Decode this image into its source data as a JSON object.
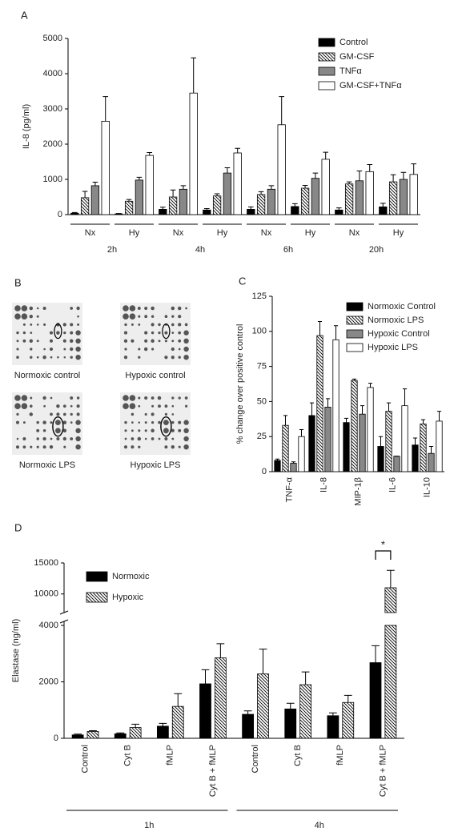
{
  "chart_data": [
    {
      "type": "bar",
      "panel": "A",
      "ylabel": "IL-8 (pg/ml)",
      "categories": [
        "Nx",
        "Hy",
        "Nx",
        "Hy",
        "Nx",
        "Hy",
        "Nx",
        "Hy"
      ],
      "groups": [
        "2h",
        "4h",
        "6h",
        "20h"
      ],
      "series": [
        {
          "name": "Control",
          "color": "#000000",
          "hatch": false,
          "values": [
            40,
            20,
            150,
            130,
            150,
            230,
            130,
            220
          ],
          "errors": [
            20,
            10,
            60,
            40,
            70,
            80,
            60,
            100
          ]
        },
        {
          "name": "GM-CSF",
          "color": "#ffffff",
          "hatch": true,
          "values": [
            480,
            380,
            500,
            530,
            570,
            750,
            870,
            930
          ],
          "errors": [
            180,
            50,
            200,
            60,
            80,
            80,
            60,
            200
          ]
        },
        {
          "name": "TNFα",
          "color": "#888888",
          "hatch": false,
          "values": [
            820,
            980,
            720,
            1180,
            720,
            1030,
            960,
            1000
          ],
          "errors": [
            100,
            80,
            100,
            150,
            100,
            150,
            280,
            200
          ]
        },
        {
          "name": "GM-CSF+TNFα",
          "color": "#ffffff",
          "hatch": false,
          "values": [
            2650,
            1680,
            3450,
            1750,
            2550,
            1570,
            1220,
            1140
          ],
          "errors": [
            700,
            80,
            1000,
            130,
            800,
            200,
            200,
            300
          ]
        }
      ],
      "ylim": [
        0,
        5000
      ],
      "yticks": [
        0,
        1000,
        2000,
        3000,
        4000,
        5000
      ]
    },
    {
      "type": "bar",
      "panel": "C",
      "ylabel": "% change over positive control",
      "categories": [
        "TNF-α",
        "IL-8",
        "MIP-1β",
        "IL-6",
        "IL-10"
      ],
      "series": [
        {
          "name": "Normoxic Control",
          "color": "#000000",
          "hatch": false,
          "values": [
            8,
            40,
            35,
            18,
            19
          ],
          "errors": [
            1,
            9,
            3,
            7,
            5
          ]
        },
        {
          "name": "Normoxic LPS",
          "color": "#ffffff",
          "hatch": true,
          "values": [
            33,
            97,
            65,
            43,
            34
          ],
          "errors": [
            7,
            10,
            1,
            6,
            3
          ]
        },
        {
          "name": "Hypoxic Control",
          "color": "#888888",
          "hatch": false,
          "values": [
            6,
            46,
            41,
            11,
            13
          ],
          "errors": [
            1,
            6,
            6,
            0,
            5
          ]
        },
        {
          "name": "Hypoxic LPS",
          "color": "#ffffff",
          "hatch": false,
          "values": [
            25,
            94,
            60,
            47,
            36
          ],
          "errors": [
            5,
            10,
            3,
            12,
            7
          ]
        }
      ],
      "ylim": [
        0,
        125
      ],
      "yticks": [
        0,
        25,
        50,
        75,
        100,
        125
      ]
    },
    {
      "type": "bar",
      "panel": "D",
      "ylabel": "Elastase (ng/ml)",
      "categories": [
        "Control",
        "Cyt B",
        "fMLP",
        "Cyt B + fMLP",
        "Control",
        "Cyt B",
        "fMLP",
        "Cyt B + fMLP"
      ],
      "groups": [
        "1h",
        "4h"
      ],
      "series": [
        {
          "name": "Normoxic",
          "color": "#000000",
          "hatch": false,
          "values": [
            120,
            160,
            430,
            1930,
            850,
            1040,
            800,
            2680
          ],
          "errors": [
            30,
            30,
            100,
            500,
            120,
            200,
            100,
            600
          ]
        },
        {
          "name": "Hypoxic",
          "color": "#ffffff",
          "hatch": true,
          "values": [
            240,
            380,
            1130,
            2850,
            2280,
            1900,
            1270,
            11000
          ],
          "errors": [
            30,
            120,
            450,
            500,
            880,
            450,
            250,
            2800
          ]
        }
      ],
      "ylim": [
        0,
        4000
      ],
      "yticks": [
        0,
        2000,
        4000
      ],
      "y_break": {
        "ylim": [
          7000,
          15000
        ],
        "yticks": [
          10000,
          15000
        ]
      },
      "annotation": "*"
    }
  ],
  "panel_b": {
    "label": "B",
    "blots": [
      "Normoxic control",
      "Hypoxic control",
      "Normoxic LPS",
      "Hypoxic LPS"
    ]
  }
}
